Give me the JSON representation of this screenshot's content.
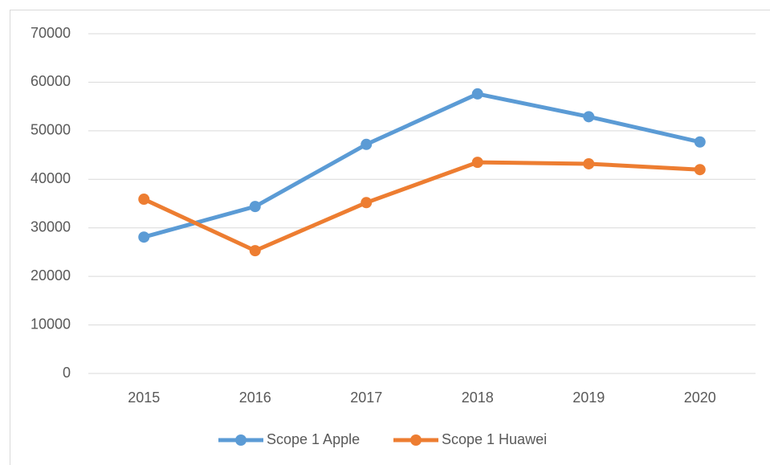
{
  "chart_data": {
    "type": "line",
    "categories": [
      "2015",
      "2016",
      "2017",
      "2018",
      "2019",
      "2020"
    ],
    "series": [
      {
        "name": "Scope 1 Apple",
        "color": "#5b9bd5",
        "values": [
          28100,
          34400,
          47200,
          57600,
          52900,
          47700
        ]
      },
      {
        "name": "Scope 1 Huawei",
        "color": "#ed7d31",
        "values": [
          35900,
          25300,
          35200,
          43500,
          43200,
          42000
        ]
      }
    ],
    "ylim": [
      0,
      70000
    ],
    "yticks": [
      0,
      10000,
      20000,
      30000,
      40000,
      50000,
      60000,
      70000
    ],
    "grid": true,
    "legend": "bottom"
  }
}
